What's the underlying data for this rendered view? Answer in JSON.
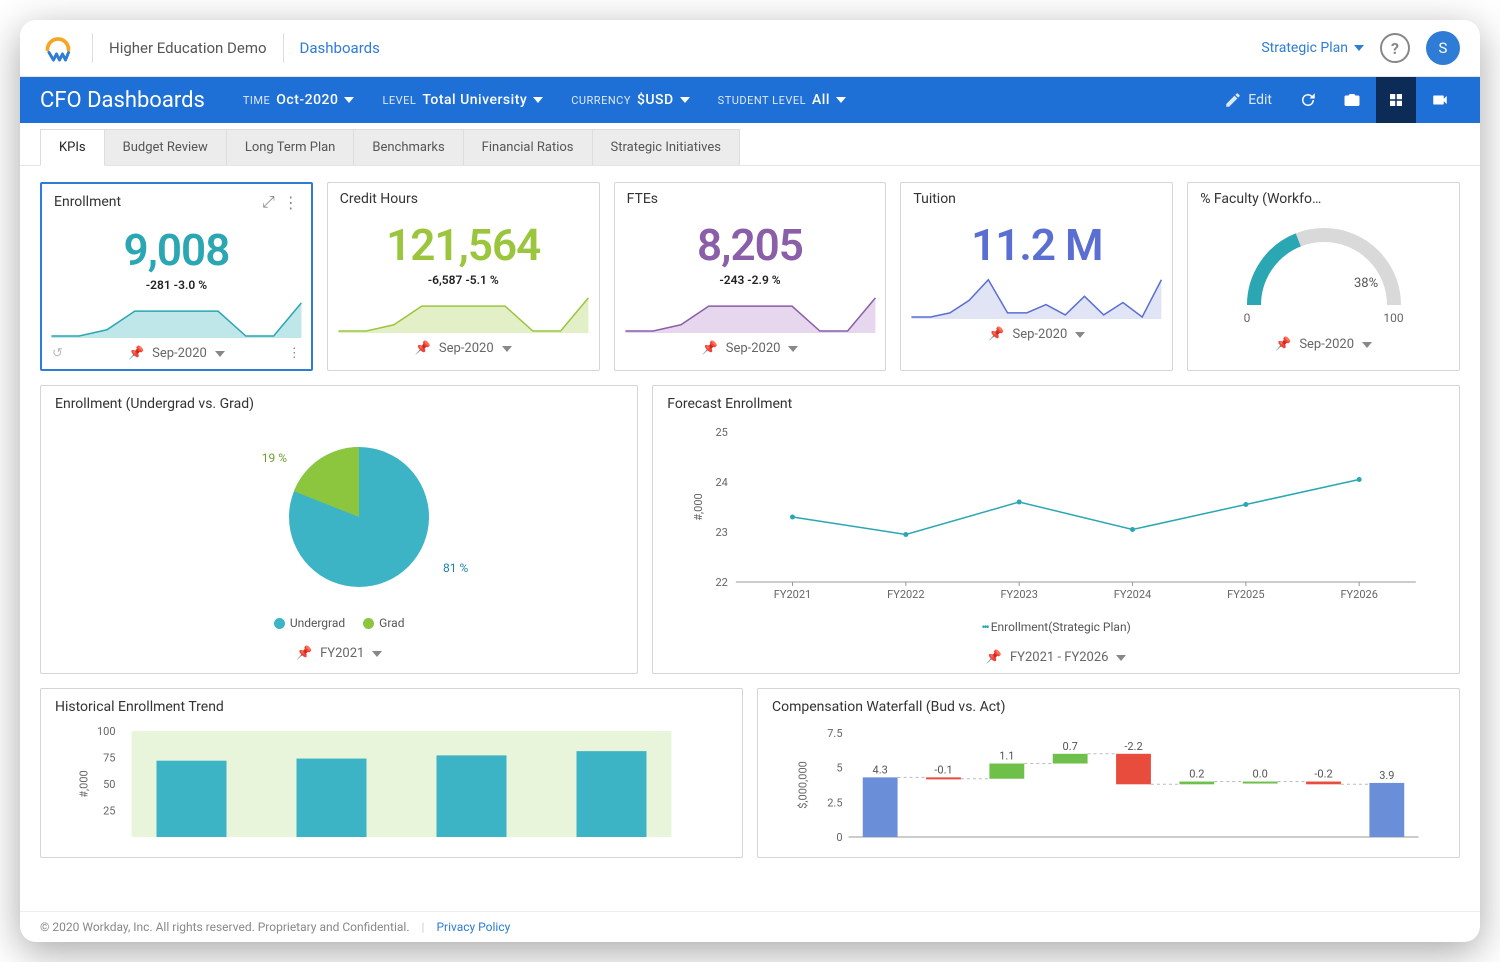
{
  "top": {
    "tenant": "Higher Education Demo",
    "crumb": "Dashboards",
    "action_link": "Strategic Plan",
    "help_glyph": "?",
    "avatar_initial": "S",
    "avatar_bg": "#2e7cd6"
  },
  "filter": {
    "title": "CFO Dashboards",
    "items": [
      {
        "label": "TIME",
        "value": "Oct-2020"
      },
      {
        "label": "LEVEL",
        "value": "Total University"
      },
      {
        "label": "CURRENCY",
        "value": "$USD"
      },
      {
        "label": "STUDENT LEVEL",
        "value": "All"
      }
    ],
    "edit_label": "Edit",
    "bar_bg": "#1e6fd6",
    "active_bg": "#0d2b57"
  },
  "tabs": [
    "KPIs",
    "Budget Review",
    "Long Term Plan",
    "Benchmarks",
    "Financial Ratios",
    "Strategic Initiatives"
  ],
  "active_tab": 0,
  "kpi": [
    {
      "title": "Enrollment",
      "value": "9,008",
      "delta": "-281   -3.0 %",
      "value_color": "#2aa7b3",
      "spark": {
        "fill": "#bfe6e8",
        "stroke": "#2aa7b3",
        "pts": [
          0,
          0,
          15,
          60,
          60,
          60,
          60,
          0,
          0,
          80
        ]
      },
      "foot": "Sep-2020",
      "selected": true
    },
    {
      "title": "Credit Hours",
      "value": "121,564",
      "delta": "-6,587   -5.1 %",
      "value_color": "#9bc53d",
      "spark": {
        "fill": "#e2efc7",
        "stroke": "#9bc53d",
        "pts": [
          0,
          0,
          15,
          60,
          60,
          60,
          60,
          0,
          0,
          80
        ]
      },
      "foot": "Sep-2020"
    },
    {
      "title": "FTEs",
      "value": "8,205",
      "delta": "-243   -2.9 %",
      "value_color": "#8a5ea8",
      "spark": {
        "fill": "#e6d7ef",
        "stroke": "#8a5ea8",
        "pts": [
          0,
          0,
          15,
          60,
          60,
          60,
          60,
          0,
          0,
          80
        ]
      },
      "foot": "Sep-2020"
    },
    {
      "title": "Tuition",
      "value": "11.2 M",
      "delta": "",
      "value_color": "#5a6fd1",
      "spark": {
        "fill": "#e1e4f5",
        "stroke": "#5a6fd1",
        "pts": [
          0,
          0,
          10,
          40,
          90,
          10,
          10,
          30,
          5,
          50,
          5,
          35,
          0,
          90
        ]
      },
      "foot": "Sep-2020"
    }
  ],
  "gauge": {
    "title": "% Faculty (Workfo…",
    "value_label": "38%",
    "value": 38,
    "min_label": "0",
    "max_label": "100",
    "fill_color": "#2aa7b3",
    "track_color": "#d9d9d9",
    "foot": "Sep-2020"
  },
  "pie": {
    "title": "Enrollment (Undergrad vs. Grad)",
    "slices": [
      {
        "label": "Undergrad",
        "pct": 81,
        "color": "#3cb4c6",
        "text_color": "#1e7fa8"
      },
      {
        "label": "Grad",
        "pct": 19,
        "color": "#8cc63f",
        "text_color": "#6aa02a"
      }
    ],
    "slice1_label": "81 %",
    "slice2_label": "19 %",
    "foot": "FY2021"
  },
  "forecast": {
    "title": "Forecast Enrollment",
    "y_title": "#,000",
    "y_ticks": [
      22,
      23,
      24,
      25
    ],
    "x_labels": [
      "FY2021",
      "FY2022",
      "FY2023",
      "FY2024",
      "FY2025",
      "FY2026"
    ],
    "values": [
      23.3,
      22.95,
      23.6,
      23.05,
      23.55,
      24.05
    ],
    "line_color": "#2aa7b3",
    "legend": "Enrollment(Strategic Plan)",
    "foot": "FY2021 - FY2026"
  },
  "hist": {
    "title": "Historical Enrollment Trend",
    "y_title": "#,000",
    "y_ticks": [
      25,
      50,
      75,
      100
    ],
    "values": [
      72,
      74,
      77,
      81
    ],
    "bar_color": "#3cb4c6",
    "band_color": "#e8f5da"
  },
  "waterfall": {
    "title": "Compensation Waterfall (Bud vs. Act)",
    "y_title": "$,000,000",
    "y_ticks": [
      0,
      2.5,
      5,
      7.5
    ],
    "y_tick_labels": [
      "0",
      "2.5",
      "5",
      "7.5"
    ],
    "start_color": "#6a8fd8",
    "end_color": "#6a8fd8",
    "pos_color": "#6fbf4b",
    "neg_color": "#e74c3c",
    "connector_color": "#bbbbbb",
    "items": [
      {
        "label": "4.3",
        "type": "start",
        "value": 4.3
      },
      {
        "label": "-0.1",
        "type": "neg",
        "value": -0.1
      },
      {
        "label": "1.1",
        "type": "pos",
        "value": 1.1
      },
      {
        "label": "0.7",
        "type": "pos",
        "value": 0.7
      },
      {
        "label": "-2.2",
        "type": "neg",
        "value": -2.2
      },
      {
        "label": "0.2",
        "type": "pos",
        "value": 0.2
      },
      {
        "label": "0.0",
        "type": "pos",
        "value": 0.0
      },
      {
        "label": "-0.2",
        "type": "neg",
        "value": -0.2
      },
      {
        "label": "3.9",
        "type": "end",
        "value": 3.9
      }
    ]
  },
  "footer": {
    "copyright": "© 2020 Workday, Inc. All rights reserved. Proprietary and Confidential.",
    "link": "Privacy Policy"
  }
}
